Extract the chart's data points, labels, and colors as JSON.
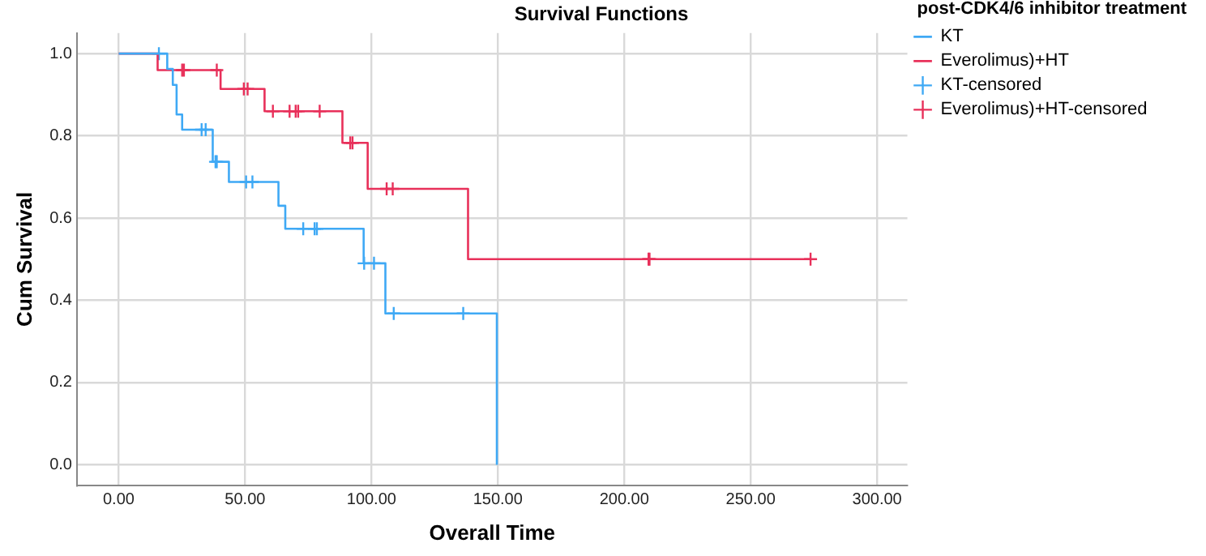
{
  "chart_data": {
    "type": "step",
    "title": "Survival Functions",
    "xlabel": "Overall Time",
    "ylabel": "Cum Survival",
    "legend_title": "post-CDK4/6 inhibitor treatment",
    "legend": "right",
    "grid": true,
    "line_style": "solid",
    "xlim": [
      -16.5,
      312
    ],
    "ylim": [
      -0.05,
      1.05
    ],
    "xticks": [
      {
        "value": 0,
        "label": "0.00"
      },
      {
        "value": 50,
        "label": "50.00"
      },
      {
        "value": 100,
        "label": "100.00"
      },
      {
        "value": 150,
        "label": "150.00"
      },
      {
        "value": 200,
        "label": "200.00"
      },
      {
        "value": 250,
        "label": "250.00"
      },
      {
        "value": 300,
        "label": "300.00"
      }
    ],
    "yticks": [
      {
        "value": 0,
        "label": "0.0"
      },
      {
        "value": 0.2,
        "label": "0.2"
      },
      {
        "value": 0.4,
        "label": "0.4"
      },
      {
        "value": 0.6,
        "label": "0.6"
      },
      {
        "value": 0.8,
        "label": "0.8"
      },
      {
        "value": 1,
        "label": "1.0"
      }
    ],
    "series": [
      {
        "name": "KT",
        "marker": "none",
        "color": "#3fa9f5",
        "x": [
          0,
          19.2,
          21.4,
          22.9,
          25.1,
          37.2,
          43.6,
          63.2,
          65.9,
          96.9,
          105.5,
          149.6
        ],
        "values": [
          1,
          0.963,
          0.924,
          0.852,
          0.815,
          0.737,
          0.688,
          0.63,
          0.574,
          0.49,
          0.368,
          0
        ]
      },
      {
        "name": "Everolimus)+HT",
        "marker": "none",
        "color": "#e8305a",
        "x": [
          0,
          15.4,
          40.3,
          57.7,
          88.5,
          98.5,
          138.2,
          273.7
        ],
        "values": [
          1,
          0.96,
          0.914,
          0.86,
          0.783,
          0.671,
          0.5,
          0.5
        ]
      },
      {
        "name": "KT-censored",
        "type": "scatter",
        "marker": "cross",
        "color": "#3fa9f5",
        "x": [
          15.9,
          32.8,
          34.4,
          38.3,
          38.8,
          50.4,
          52.9,
          73,
          77.5,
          78.4,
          97.1,
          101,
          108.8,
          136.3
        ],
        "values": [
          1,
          0.815,
          0.815,
          0.737,
          0.737,
          0.688,
          0.688,
          0.574,
          0.574,
          0.574,
          0.49,
          0.49,
          0.368,
          0.368
        ]
      },
      {
        "name": "Everolimus)+HT-censored",
        "type": "scatter",
        "marker": "cross",
        "color": "#e8305a",
        "x": [
          25.1,
          25.8,
          38.8,
          49.5,
          51,
          61,
          67.6,
          70,
          71,
          79.5,
          91.6,
          92.5,
          106,
          108.4,
          209.6,
          210,
          273.7
        ],
        "values": [
          0.96,
          0.96,
          0.96,
          0.914,
          0.914,
          0.86,
          0.86,
          0.86,
          0.86,
          0.86,
          0.783,
          0.783,
          0.671,
          0.671,
          0.5,
          0.5,
          0.5
        ]
      }
    ]
  }
}
